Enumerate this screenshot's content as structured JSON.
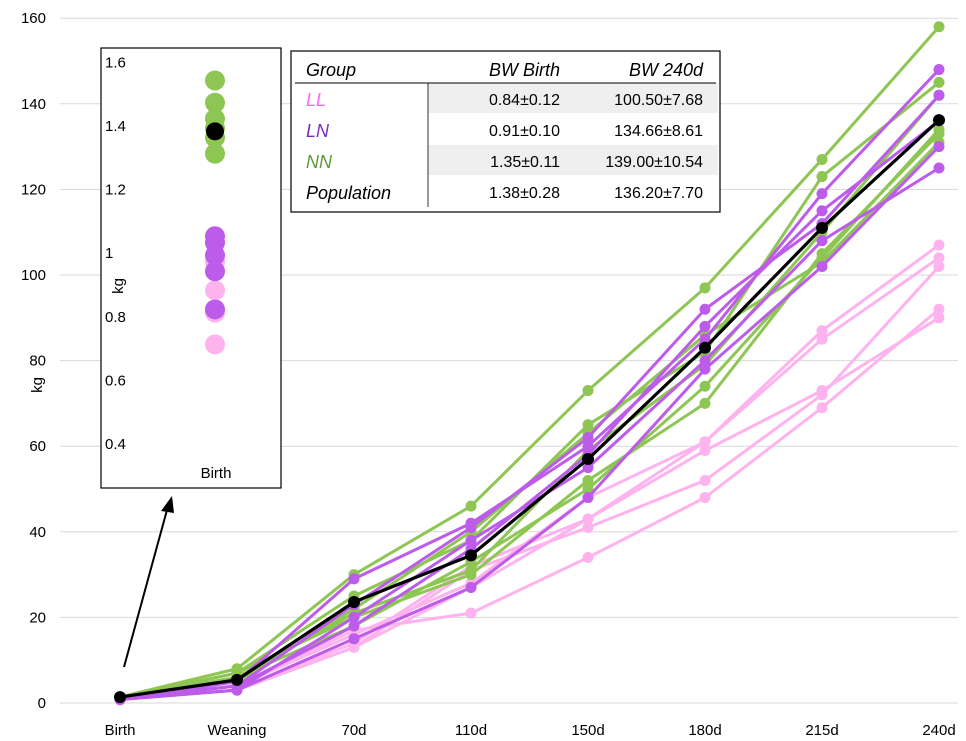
{
  "chart_data": {
    "type": "line",
    "categories": [
      "Birth",
      "Weaning",
      "70d",
      "110d",
      "150d",
      "180d",
      "215d",
      "240d"
    ],
    "ylabel": "kg",
    "ylim": [
      0,
      160
    ],
    "yticks": [
      0,
      20,
      40,
      60,
      80,
      100,
      120,
      140,
      160
    ],
    "grid": true,
    "colors": {
      "LL": "#ffb3ee",
      "LN": "#bd5bea",
      "NN": "#8dc653",
      "Population": "#000000"
    },
    "series": [
      {
        "group": "NN",
        "values": [
          1.4,
          8,
          30,
          46,
          73,
          97,
          127,
          158
        ]
      },
      {
        "group": "NN",
        "values": [
          1.3,
          7,
          25,
          38,
          65,
          82,
          123,
          145
        ]
      },
      {
        "group": "NN",
        "values": [
          1.3,
          6,
          21,
          31,
          59,
          79,
          110,
          142
        ]
      },
      {
        "group": "NN",
        "values": [
          1.2,
          7,
          20,
          30,
          52,
          70,
          105,
          133
        ]
      },
      {
        "group": "NN",
        "values": [
          1.3,
          6,
          18,
          33,
          50,
          74,
          104,
          134
        ]
      },
      {
        "group": "NN",
        "values": [
          1.4,
          5,
          22,
          40,
          63,
          86,
          103,
          131
        ]
      },
      {
        "group": "LN",
        "values": [
          0.9,
          5,
          29,
          42,
          60,
          85,
          119,
          148
        ]
      },
      {
        "group": "LN",
        "values": [
          0.9,
          4,
          23,
          41,
          62,
          92,
          112,
          142
        ]
      },
      {
        "group": "LN",
        "values": [
          1.0,
          4,
          18,
          36,
          58,
          88,
          115,
          136
        ]
      },
      {
        "group": "LN",
        "values": [
          0.9,
          3,
          15,
          27,
          48,
          78,
          102,
          130
        ]
      },
      {
        "group": "LN",
        "values": [
          0.8,
          3,
          20,
          38,
          55,
          80,
          108,
          125
        ]
      },
      {
        "group": "LL",
        "values": [
          0.7,
          4,
          16,
          28,
          48,
          61,
          87,
          107
        ]
      },
      {
        "group": "LL",
        "values": [
          0.8,
          3,
          14,
          32,
          43,
          61,
          85,
          104
        ]
      },
      {
        "group": "LL",
        "values": [
          0.8,
          3,
          13,
          31,
          41,
          52,
          72,
          102
        ]
      },
      {
        "group": "LL",
        "values": [
          0.7,
          4,
          17,
          21,
          34,
          48,
          69,
          92
        ]
      },
      {
        "group": "LL",
        "values": [
          0.9,
          3,
          13,
          27,
          43,
          59,
          73,
          90
        ]
      },
      {
        "group": "Population",
        "values": [
          1.38,
          5.4,
          23.6,
          34.5,
          57,
          83,
          111,
          136.2
        ]
      }
    ],
    "inset": {
      "category": "Birth",
      "ylabel": "kg",
      "ylim": [
        0.3,
        1.6
      ],
      "yticks": [
        0.4,
        0.6,
        0.8,
        1,
        1.2,
        1.4,
        1.6
      ],
      "points": [
        {
          "group": "NN",
          "value": 1.54
        },
        {
          "group": "NN",
          "value": 1.47
        },
        {
          "group": "NN",
          "value": 1.42
        },
        {
          "group": "NN",
          "value": 1.39
        },
        {
          "group": "NN",
          "value": 1.36
        },
        {
          "group": "NN",
          "value": 1.31
        },
        {
          "group": "Population",
          "value": 1.38
        },
        {
          "group": "LN",
          "value": 1.05
        },
        {
          "group": "LN",
          "value": 1.03
        },
        {
          "group": "LN",
          "value": 0.99
        },
        {
          "group": "LN",
          "value": 0.94
        },
        {
          "group": "LN",
          "value": 0.82
        },
        {
          "group": "LL",
          "value": 0.97
        },
        {
          "group": "LL",
          "value": 0.88
        },
        {
          "group": "LL",
          "value": 0.81
        },
        {
          "group": "LL",
          "value": 0.71
        }
      ]
    }
  },
  "table": {
    "headers": [
      "Group",
      "BW Birth",
      "BW 240d"
    ],
    "rows": [
      {
        "group": "LL",
        "bw_birth": "0.84±0.12",
        "bw_240d": "100.50±7.68",
        "color": "#ff66ee",
        "shaded": true
      },
      {
        "group": "LN",
        "bw_birth": "0.91±0.10",
        "bw_240d": "134.66±8.61",
        "color": "#7a2db5",
        "shaded": false
      },
      {
        "group": "NN",
        "bw_birth": "1.35±0.11",
        "bw_240d": "139.00±10.54",
        "color": "#5e9a35",
        "shaded": true
      },
      {
        "group": "Population",
        "bw_birth": "1.38±0.28",
        "bw_240d": "136.20±7.70",
        "color": "#000000",
        "shaded": false
      }
    ]
  }
}
